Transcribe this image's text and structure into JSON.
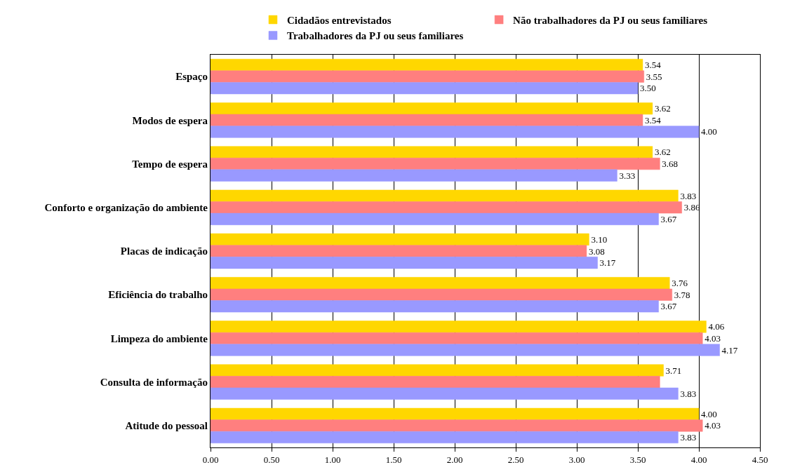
{
  "chart_data": {
    "type": "bar",
    "orientation": "horizontal",
    "categories": [
      "Espaço",
      "Modos de espera",
      "Tempo de espera",
      "Conforto e organização do ambiente",
      "Placas de indicação",
      "Eficiência do trabalho",
      "Limpeza do ambiente",
      "Consulta de informação",
      "Atitude do pessoal"
    ],
    "series": [
      {
        "name": "Cidadãos entrevistados",
        "color": "#ffd700",
        "values": [
          3.54,
          3.62,
          3.62,
          3.83,
          3.1,
          3.76,
          4.06,
          3.71,
          4.0
        ],
        "value_labels": [
          "3.54",
          "3.62",
          "3.62",
          "3.83",
          "3.10",
          "3.76",
          "4.06",
          "3.71",
          "4.00"
        ]
      },
      {
        "name": "Não trabalhadores da PJ ou seus familiares",
        "color": "#ff7f7f",
        "values": [
          3.55,
          3.54,
          3.68,
          3.86,
          3.08,
          3.78,
          4.03,
          3.68,
          4.03
        ],
        "value_labels": [
          "3.55",
          "3.54",
          "3.68",
          "3.86",
          "3.08",
          "3.78",
          "4.03",
          null,
          "4.03"
        ]
      },
      {
        "name": "Trabalhadores da PJ ou seus familiares",
        "color": "#9999ff",
        "values": [
          3.5,
          4.0,
          3.33,
          3.67,
          3.17,
          3.67,
          4.17,
          3.83,
          3.83
        ],
        "value_labels": [
          "3.50",
          "4.00",
          "3.33",
          "3.67",
          "3.17",
          "3.67",
          "4.17",
          "3.83",
          "3.83"
        ]
      }
    ],
    "xlim": [
      0,
      4.5
    ],
    "xticks": [
      "0.00",
      "0.50",
      "1.00",
      "1.50",
      "2.00",
      "2.50",
      "3.00",
      "3.50",
      "4.00",
      "4.50"
    ],
    "grid": "x",
    "legend": "top"
  }
}
